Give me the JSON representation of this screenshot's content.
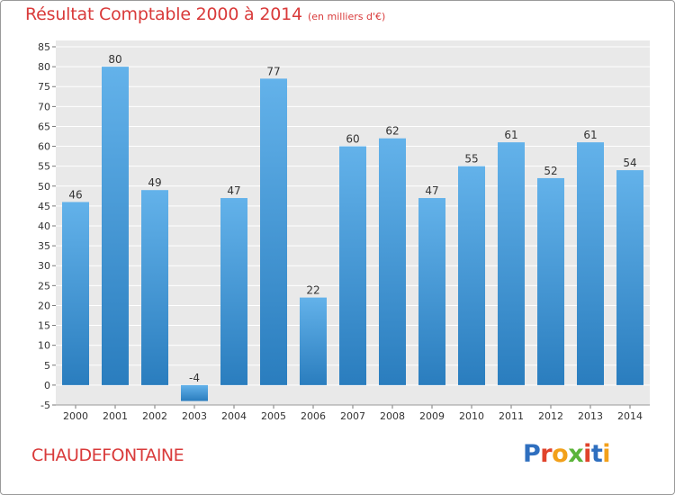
{
  "header": {
    "title": "Résultat Comptable 2000 à 2014",
    "subtitle": "(en milliers d'€)"
  },
  "footer": {
    "commune": "CHAUDEFONTAINE",
    "logo": "Proxiti",
    "logo_colors": [
      "#2f6fbf",
      "#e0432b",
      "#f2a01a",
      "#5bb43a",
      "#e0432b",
      "#2f6fbf",
      "#f2a01a"
    ]
  },
  "chart_data": {
    "type": "bar",
    "title": "Résultat Comptable 2000 à 2014",
    "subtitle": "(en milliers d'€)",
    "xlabel": "",
    "ylabel": "",
    "categories": [
      "2000",
      "2001",
      "2002",
      "2003",
      "2004",
      "2005",
      "2006",
      "2007",
      "2008",
      "2009",
      "2010",
      "2011",
      "2012",
      "2013",
      "2014"
    ],
    "values": [
      46,
      80,
      49,
      -4,
      47,
      77,
      22,
      60,
      62,
      47,
      55,
      61,
      52,
      61,
      54
    ],
    "ylim": [
      -5,
      85
    ],
    "yticks": [
      -5,
      0,
      5,
      10,
      15,
      20,
      25,
      30,
      35,
      40,
      45,
      50,
      55,
      60,
      65,
      70,
      75,
      80,
      85
    ],
    "grid": true,
    "legend": "none",
    "bar_color_light": "#63b2ea",
    "bar_color_dark": "#2a7dbe"
  }
}
